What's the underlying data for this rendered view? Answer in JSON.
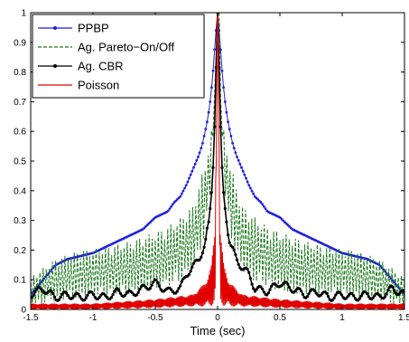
{
  "chart_data": {
    "type": "line",
    "xlabel": "Time (sec)",
    "ylabel": "",
    "xlim": [
      -1.5,
      1.5
    ],
    "ylim": [
      0,
      1
    ],
    "xticks": [
      "-1.5",
      "-1",
      "-0.5",
      "0",
      "0.5",
      "1",
      "1.5"
    ],
    "yticks": [
      "0",
      "0.1",
      "0.2",
      "0.3",
      "0.4",
      "0.5",
      "0.6",
      "0.7",
      "0.8",
      "0.9",
      "1"
    ],
    "grid": false,
    "legend": "top-left",
    "series": [
      {
        "name": "PPBP",
        "color": "#1f1fe0",
        "style": "solid-dot",
        "x": [
          -1.5,
          -1.4,
          -1.3,
          -1.2,
          -1.1,
          -1.0,
          -0.9,
          -0.8,
          -0.7,
          -0.6,
          -0.5,
          -0.4,
          -0.35,
          -0.3,
          -0.25,
          -0.2,
          -0.15,
          -0.12,
          -0.1,
          -0.08,
          -0.06,
          -0.04,
          -0.03,
          -0.02,
          -0.01,
          0,
          0.01,
          0.02,
          0.03,
          0.04,
          0.06,
          0.08,
          0.1,
          0.12,
          0.15,
          0.2,
          0.25,
          0.3,
          0.35,
          0.4,
          0.5,
          0.6,
          0.7,
          0.8,
          0.9,
          1.0,
          1.1,
          1.2,
          1.3,
          1.4,
          1.5
        ],
        "y": [
          0.05,
          0.1,
          0.15,
          0.17,
          0.18,
          0.19,
          0.21,
          0.23,
          0.25,
          0.27,
          0.31,
          0.33,
          0.36,
          0.38,
          0.42,
          0.47,
          0.52,
          0.56,
          0.6,
          0.64,
          0.7,
          0.78,
          0.84,
          0.9,
          0.95,
          1.0,
          0.95,
          0.9,
          0.84,
          0.78,
          0.7,
          0.64,
          0.6,
          0.56,
          0.52,
          0.47,
          0.42,
          0.38,
          0.36,
          0.33,
          0.31,
          0.27,
          0.25,
          0.23,
          0.21,
          0.19,
          0.18,
          0.17,
          0.15,
          0.1,
          0.05
        ]
      },
      {
        "name": "Ag. Pareto−On/Off",
        "color": "#1a7a1a",
        "style": "dashed",
        "x": [
          -1.5,
          -1.3,
          -1.1,
          -0.9,
          -0.7,
          -0.5,
          -0.4,
          -0.3,
          -0.2,
          -0.15,
          -0.1,
          -0.06,
          -0.03,
          0,
          0.03,
          0.06,
          0.1,
          0.15,
          0.2,
          0.3,
          0.4,
          0.5,
          0.7,
          0.9,
          1.1,
          1.3,
          1.5
        ],
        "y": [
          0.06,
          0.1,
          0.12,
          0.13,
          0.14,
          0.16,
          0.18,
          0.2,
          0.24,
          0.3,
          0.37,
          0.48,
          0.65,
          1.0,
          0.65,
          0.48,
          0.37,
          0.3,
          0.24,
          0.2,
          0.18,
          0.16,
          0.14,
          0.13,
          0.12,
          0.1,
          0.06
        ],
        "oscillation_amp": [
          0.05,
          0.07,
          0.08,
          0.08,
          0.09,
          0.1,
          0.1,
          0.11,
          0.11,
          0.12,
          0.12,
          0.1,
          0.0,
          0.0,
          0.0,
          0.1,
          0.12,
          0.12,
          0.11,
          0.11,
          0.1,
          0.1,
          0.09,
          0.08,
          0.08,
          0.07,
          0.05
        ]
      },
      {
        "name": "Ag. CBR",
        "color": "#000000",
        "style": "solid-dot",
        "x": [
          -1.5,
          -1.4,
          -1.3,
          -1.2,
          -1.1,
          -1.0,
          -0.9,
          -0.8,
          -0.7,
          -0.6,
          -0.5,
          -0.4,
          -0.3,
          -0.25,
          -0.2,
          -0.15,
          -0.1,
          -0.07,
          -0.05,
          -0.03,
          -0.02,
          -0.01,
          0,
          0.01,
          0.02,
          0.03,
          0.05,
          0.07,
          0.1,
          0.15,
          0.2,
          0.25,
          0.3,
          0.4,
          0.5,
          0.6,
          0.7,
          0.8,
          0.9,
          1.0,
          1.1,
          1.2,
          1.3,
          1.4,
          1.5
        ],
        "y": [
          0.05,
          0.07,
          0.04,
          0.05,
          0.04,
          0.05,
          0.04,
          0.06,
          0.05,
          0.07,
          0.09,
          0.06,
          0.07,
          0.12,
          0.14,
          0.17,
          0.22,
          0.3,
          0.38,
          0.52,
          0.68,
          0.85,
          1.0,
          0.85,
          0.68,
          0.52,
          0.38,
          0.3,
          0.22,
          0.17,
          0.14,
          0.12,
          0.07,
          0.06,
          0.09,
          0.07,
          0.05,
          0.06,
          0.04,
          0.05,
          0.04,
          0.05,
          0.04,
          0.07,
          0.05
        ]
      },
      {
        "name": "Poisson",
        "color": "#e00000",
        "style": "solid",
        "x": [
          -1.5,
          -1.0,
          -0.5,
          -0.2,
          -0.1,
          -0.05,
          -0.02,
          0,
          0.02,
          0.05,
          0.1,
          0.2,
          0.5,
          1.0,
          1.5
        ],
        "y": [
          0.01,
          0.01,
          0.02,
          0.03,
          0.05,
          0.08,
          0.15,
          1.0,
          0.15,
          0.08,
          0.05,
          0.03,
          0.02,
          0.01,
          0.01
        ],
        "oscillation_amp": [
          0.01,
          0.01,
          0.015,
          0.02,
          0.04,
          0.07,
          0.12,
          0.0,
          0.12,
          0.07,
          0.04,
          0.02,
          0.015,
          0.01,
          0.01
        ]
      }
    ]
  }
}
